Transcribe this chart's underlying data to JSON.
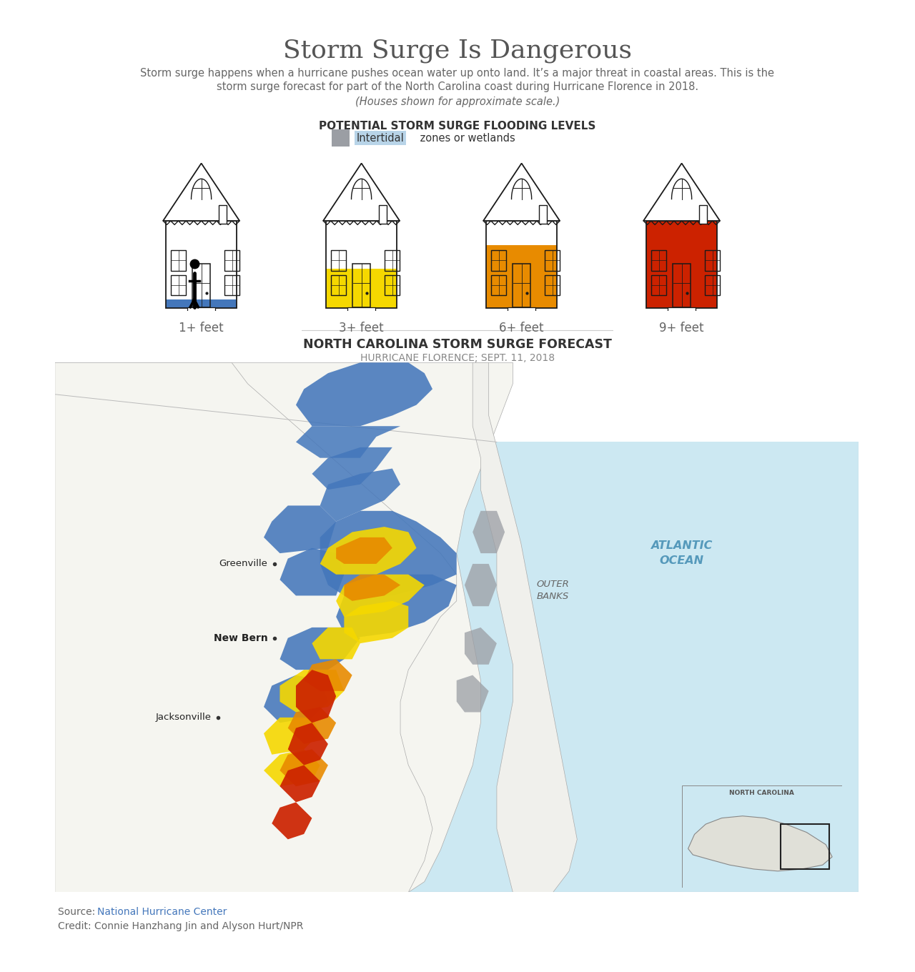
{
  "title": "Storm Surge Is Dangerous",
  "subtitle_line1": "Storm surge happens when a hurricane pushes ocean water up onto land. It’s a major threat in coastal areas. This is the",
  "subtitle_line2": "storm surge forecast for part of the North Carolina coast during Hurricane Florence in 2018.",
  "subtitle_line3": "(Houses shown for approximate scale.)",
  "section_title1": "POTENTIAL STORM SURGE FLOODING LEVELS",
  "intertidal_color": "#9b9ea4",
  "intertidal_highlight_color": "#b8d4e8",
  "flood_labels": [
    "1+ feet",
    "3+ feet",
    "6+ feet",
    "9+ feet"
  ],
  "flood_colors": [
    "#4477bb",
    "#f5d800",
    "#e88b00",
    "#cc2200"
  ],
  "section_title2": "NORTH CAROLINA STORM SURGE FORECAST",
  "section_subtitle2": "HURRICANE FLORENCE; SEPT. 11, 2018",
  "map_bg_color": "#cce8f2",
  "land_color": "#f5f5f0",
  "pamlico_sound_color": "#cce8f2",
  "outer_banks_color": "#f0f0ec",
  "source_link": "National Hurricane Center",
  "source_link_color": "#4477bb",
  "credit_text": "Credit: Connie Hanzhang Jin and Alyson Hurt/NPR",
  "background_color": "#ffffff",
  "title_color": "#555555",
  "body_color": "#666666",
  "section_title_color": "#333333",
  "atlantic_label": "ATLANTIC\nOCEAN",
  "outer_banks_label": "OUTER\nBANKS"
}
